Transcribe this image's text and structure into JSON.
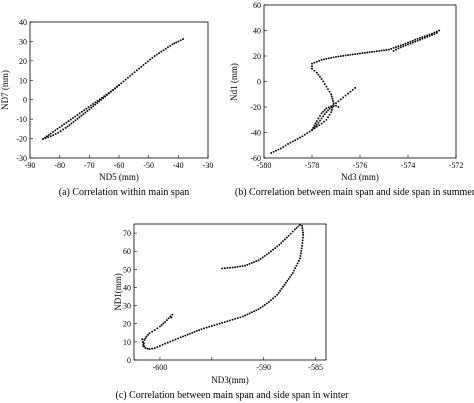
{
  "chart_data": [
    {
      "type": "scatter",
      "caption": "(a) Correlation within main span",
      "xlabel": "ND5 (mm)",
      "ylabel": "ND7 (mm)",
      "xlim": [
        -90,
        -30
      ],
      "ylim": [
        -30,
        40
      ],
      "xticks": [
        -90,
        -80,
        -70,
        -60,
        -50,
        -40,
        -30
      ],
      "yticks": [
        -30,
        -20,
        -10,
        0,
        10,
        20,
        30,
        40
      ],
      "x_reversed": false,
      "series": [
        {
          "x": [
            -85.6,
            -83,
            -80.5,
            -78,
            -76,
            -74,
            -72,
            -70,
            -68,
            -66,
            -64,
            -62,
            -60
          ],
          "y": [
            -20.2,
            -18.8,
            -17,
            -14.5,
            -12.2,
            -9.8,
            -7.4,
            -5,
            -2.5,
            0,
            2.5,
            5,
            7.5
          ]
        },
        {
          "x": [
            -85.6,
            -83,
            -80,
            -77,
            -74,
            -71,
            -68,
            -65,
            -62,
            -60
          ],
          "y": [
            -20.2,
            -17.4,
            -14.2,
            -11,
            -7.8,
            -4.6,
            -1.4,
            1.8,
            5,
            7.5
          ]
        },
        {
          "x": [
            -60,
            -57,
            -54,
            -51,
            -48,
            -45,
            -42,
            -40,
            -38.4
          ],
          "y": [
            7.5,
            11.3,
            15.1,
            18.8,
            22.5,
            25.5,
            28.5,
            30,
            31.2
          ]
        }
      ]
    },
    {
      "type": "scatter",
      "caption": "(b) Correlation between main span and side span in summer",
      "xlabel": "Nd3 (mm)",
      "ylabel": "Nd1 (mm)",
      "xlim": [
        -580,
        -572
      ],
      "ylim": [
        -60,
        60
      ],
      "xticks": [
        -580,
        -578,
        -576,
        -574,
        -572
      ],
      "yticks": [
        -60,
        -40,
        -20,
        0,
        20,
        40,
        60
      ],
      "x_reversed": false,
      "series": [
        {
          "x": [
            -579.7,
            -579.3,
            -579,
            -578.7,
            -578.4,
            -578.2,
            -578,
            -577.8,
            -577.6,
            -577.4,
            -577.2,
            -577.1,
            -577.2,
            -577.4,
            -577.6,
            -577.8,
            -578,
            -578,
            -577.6,
            -577.1,
            -576.4,
            -575.8,
            -575.2,
            -574.8,
            -574.5,
            -574.2,
            -574,
            -573.8,
            -573.6,
            -573.3,
            -573,
            -572.7
          ],
          "y": [
            -56,
            -52.5,
            -49,
            -46,
            -43,
            -40.5,
            -38,
            -35.5,
            -33,
            -30,
            -24,
            -17,
            -10,
            -4,
            2,
            7,
            10,
            14,
            17,
            19,
            21,
            22.5,
            24,
            25,
            27,
            29,
            30.5,
            32,
            33.5,
            35.5,
            37.5,
            40
          ]
        },
        {
          "x": [
            -578,
            -577.8,
            -577.6,
            -577.4,
            -577.2,
            -577,
            -576.8,
            -576.6,
            -576.4,
            -576.2
          ],
          "y": [
            -38,
            -34,
            -29,
            -24,
            -20,
            -17,
            -14,
            -11,
            -8,
            -5
          ]
        },
        {
          "x": [
            -578,
            -577.8,
            -577.6,
            -577.4,
            -577.2,
            -577,
            -576.9
          ],
          "y": [
            -38,
            -31,
            -25,
            -21,
            -19.5,
            -19,
            -20
          ]
        },
        {
          "x": [
            -574.6,
            -574.4,
            -574.2,
            -574,
            -573.8,
            -573.6,
            -573.4,
            -573.2,
            -573,
            -572.8
          ],
          "y": [
            24,
            26,
            27.5,
            29,
            30.5,
            32,
            33.5,
            35,
            36.5,
            38
          ]
        }
      ]
    },
    {
      "type": "scatter",
      "caption": "(c) Correlation between main span and side span in winter",
      "xlabel": "ND3(mm)",
      "ylabel": "ND1(mm)",
      "xlim": [
        -602.5,
        -584
      ],
      "ylim": [
        0,
        75
      ],
      "xticks": [
        -600,
        -595,
        -590,
        -585
      ],
      "xtick_labels": [
        "-600",
        "",
        "-590",
        "-585"
      ],
      "yticks": [
        0,
        10,
        20,
        30,
        40,
        50,
        60,
        70
      ],
      "x_reversed": false,
      "series": [
        {
          "x": [
            -601.6,
            -601.5,
            -601.3,
            -601,
            -600.5,
            -600,
            -599.5,
            -599,
            -598.8,
            -598.9
          ],
          "y": [
            7.5,
            11,
            13,
            14.8,
            16.5,
            18.5,
            21,
            24,
            25,
            23.5
          ]
        },
        {
          "x": [
            -601.7,
            -601.6,
            -601.4,
            -601,
            -600.5,
            -599.5,
            -598,
            -596,
            -594,
            -592,
            -590.5,
            -589.5,
            -588.7,
            -588,
            -587.2,
            -586.5,
            -586.3,
            -586.2,
            -586.3,
            -586.5,
            -587,
            -587.6,
            -588.5,
            -589.5,
            -590.5,
            -591.8,
            -593,
            -594
          ],
          "y": [
            11.5,
            8.5,
            6.6,
            6,
            6.5,
            9,
            12.5,
            17,
            20.5,
            24,
            28,
            32,
            36,
            41.5,
            48,
            56,
            63,
            69,
            74,
            74.5,
            72,
            68.5,
            63.5,
            59,
            55,
            52,
            51,
            50.5
          ]
        }
      ]
    }
  ]
}
